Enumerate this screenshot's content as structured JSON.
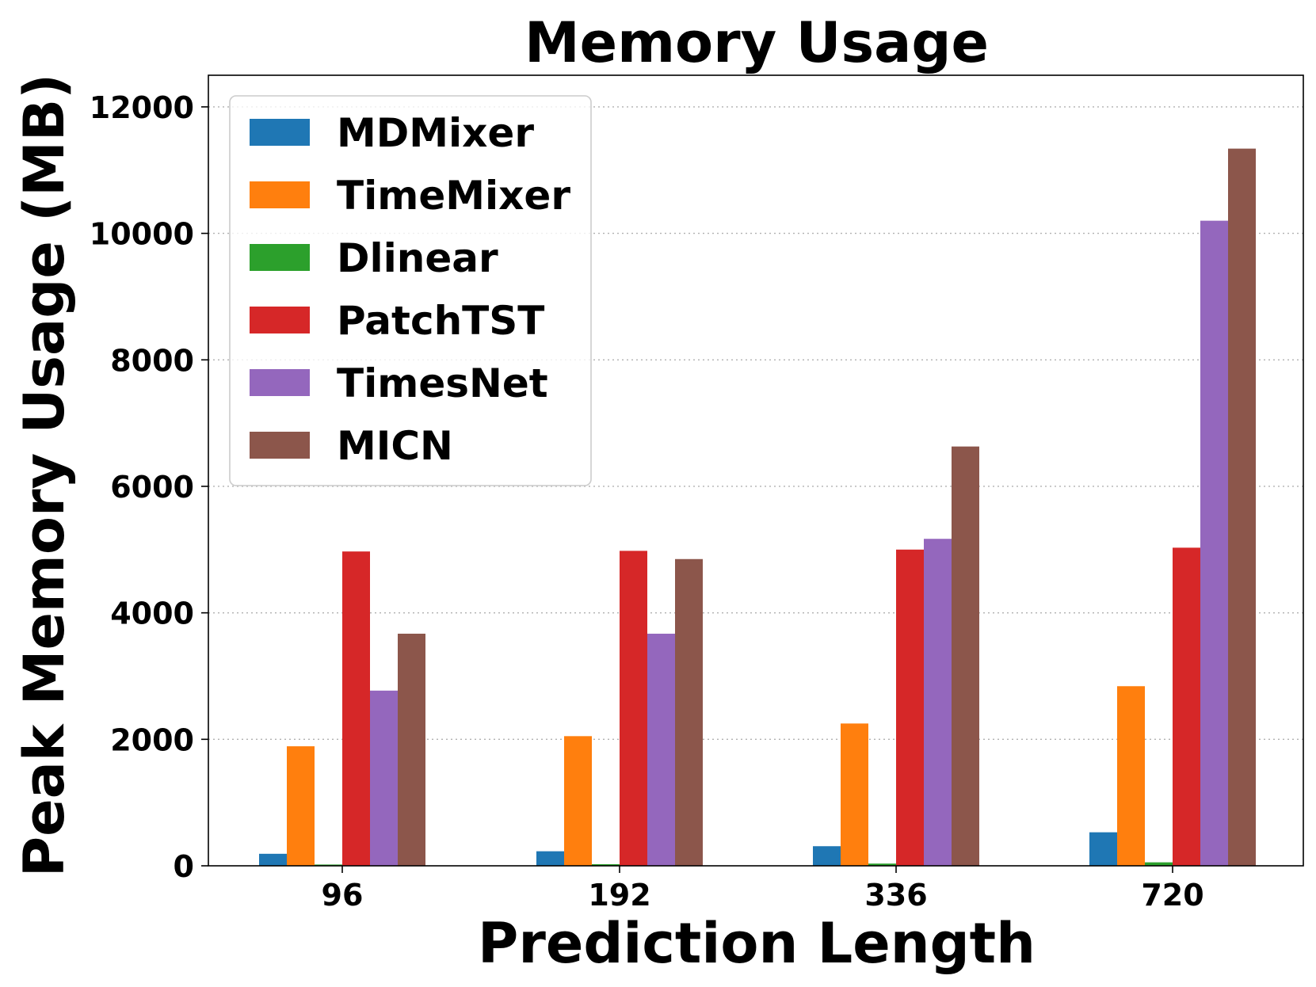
{
  "chart_data": {
    "type": "bar",
    "title": "Memory Usage",
    "xlabel": "Prediction Length",
    "ylabel": "Peak Memory Usage (MB)",
    "categories": [
      "96",
      "192",
      "336",
      "720"
    ],
    "ylim": [
      0,
      12500
    ],
    "yticks": [
      0,
      2000,
      4000,
      6000,
      8000,
      10000,
      12000
    ],
    "grid": "horizontal-dotted",
    "legend": "top-left",
    "series": [
      {
        "name": "MDMixer",
        "color": "#1f77b4",
        "values": [
          190,
          230,
          310,
          530
        ]
      },
      {
        "name": "TimeMixer",
        "color": "#ff7f0e",
        "values": [
          1890,
          2050,
          2250,
          2840
        ]
      },
      {
        "name": "Dlinear",
        "color": "#2ca02c",
        "values": [
          20,
          25,
          35,
          55
        ]
      },
      {
        "name": "PatchTST",
        "color": "#d62728",
        "values": [
          4970,
          4980,
          5000,
          5030
        ]
      },
      {
        "name": "TimesNet",
        "color": "#9467bd",
        "values": [
          2770,
          3670,
          5170,
          10200
        ]
      },
      {
        "name": "MICN",
        "color": "#8c564b",
        "values": [
          3670,
          4850,
          6630,
          11340
        ]
      }
    ]
  }
}
